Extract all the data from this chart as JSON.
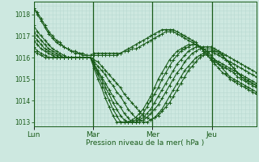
{
  "title": "",
  "xlabel": "Pression niveau de la mer( hPa )",
  "ylabel": "",
  "bg_color": "#cde8e0",
  "plot_bg_color": "#cde8e0",
  "grid_color": "#b8d8d0",
  "line_color": "#1a5c1a",
  "marker": "+",
  "marker_size": 3,
  "linewidth": 0.8,
  "ylim": [
    1012.8,
    1018.6
  ],
  "yticks": [
    1013,
    1014,
    1015,
    1016,
    1017,
    1018
  ],
  "day_labels": [
    "Lun",
    "Mar",
    "Mer",
    "Jeu"
  ],
  "day_positions": [
    0,
    24,
    48,
    72
  ],
  "total_hours": 90,
  "vline_color": "#1a5c1a",
  "vline_positions": [
    0,
    24,
    48,
    72
  ],
  "series": [
    [
      1018.3,
      1018.1,
      1017.8,
      1017.5,
      1017.2,
      1017.0,
      1016.8,
      1016.7,
      1016.5,
      1016.4,
      1016.3,
      1016.3,
      1016.2,
      1016.2,
      1016.1,
      1016.1,
      1016.2,
      1016.2,
      1016.2,
      1016.2,
      1016.2,
      1016.2,
      1016.2,
      1016.2,
      1016.3,
      1016.3,
      1016.4,
      1016.4,
      1016.5,
      1016.6,
      1016.7,
      1016.8,
      1016.9,
      1017.0,
      1017.1,
      1017.2,
      1017.2,
      1017.2,
      1017.1,
      1017.0,
      1016.9,
      1016.8,
      1016.7,
      1016.6,
      1016.5,
      1016.4,
      1016.2,
      1016.0,
      1015.9,
      1015.8,
      1015.7,
      1015.6,
      1015.5,
      1015.4,
      1015.3,
      1015.2,
      1015.1,
      1015.0,
      1014.9,
      1014.8
    ],
    [
      1018.3,
      1018.0,
      1017.7,
      1017.4,
      1017.1,
      1016.9,
      1016.7,
      1016.6,
      1016.5,
      1016.4,
      1016.3,
      1016.2,
      1016.2,
      1016.1,
      1016.1,
      1016.1,
      1016.1,
      1016.1,
      1016.1,
      1016.1,
      1016.1,
      1016.1,
      1016.1,
      1016.2,
      1016.3,
      1016.4,
      1016.5,
      1016.6,
      1016.7,
      1016.8,
      1016.9,
      1017.0,
      1017.1,
      1017.2,
      1017.3,
      1017.3,
      1017.3,
      1017.3,
      1017.2,
      1017.1,
      1017.0,
      1016.9,
      1016.8,
      1016.7,
      1016.5,
      1016.3,
      1016.1,
      1015.9,
      1015.8,
      1015.7,
      1015.6,
      1015.5,
      1015.4,
      1015.3,
      1015.1,
      1015.0,
      1014.9,
      1014.8,
      1014.7,
      1014.6
    ],
    [
      1017.5,
      1017.2,
      1017.0,
      1016.8,
      1016.6,
      1016.4,
      1016.3,
      1016.2,
      1016.1,
      1016.0,
      1016.0,
      1016.0,
      1016.0,
      1016.0,
      1016.0,
      1016.0,
      1015.9,
      1015.8,
      1015.6,
      1015.4,
      1015.2,
      1015.0,
      1014.8,
      1014.6,
      1014.3,
      1014.1,
      1013.9,
      1013.7,
      1013.5,
      1013.3,
      1013.2,
      1013.1,
      1013.2,
      1013.3,
      1013.5,
      1013.7,
      1013.9,
      1014.2,
      1014.5,
      1014.8,
      1015.1,
      1015.4,
      1015.6,
      1015.8,
      1016.0,
      1016.1,
      1016.2,
      1016.3,
      1016.3,
      1016.3,
      1016.2,
      1016.1,
      1016.0,
      1015.9,
      1015.8,
      1015.7,
      1015.6,
      1015.5,
      1015.4,
      1015.3
    ],
    [
      1017.2,
      1017.0,
      1016.8,
      1016.6,
      1016.4,
      1016.3,
      1016.2,
      1016.1,
      1016.0,
      1016.0,
      1016.0,
      1016.0,
      1016.0,
      1016.0,
      1016.0,
      1016.0,
      1015.8,
      1015.6,
      1015.4,
      1015.2,
      1014.9,
      1014.7,
      1014.4,
      1014.2,
      1013.9,
      1013.6,
      1013.4,
      1013.2,
      1013.1,
      1013.0,
      1013.0,
      1013.1,
      1013.2,
      1013.4,
      1013.6,
      1013.9,
      1014.2,
      1014.5,
      1014.8,
      1015.1,
      1015.4,
      1015.6,
      1015.8,
      1016.0,
      1016.1,
      1016.2,
      1016.3,
      1016.3,
      1016.2,
      1016.1,
      1016.0,
      1015.9,
      1015.8,
      1015.7,
      1015.6,
      1015.5,
      1015.4,
      1015.3,
      1015.2,
      1015.1
    ],
    [
      1017.0,
      1016.8,
      1016.6,
      1016.4,
      1016.3,
      1016.2,
      1016.1,
      1016.0,
      1016.0,
      1016.0,
      1016.0,
      1016.0,
      1016.0,
      1016.0,
      1016.0,
      1016.0,
      1015.7,
      1015.4,
      1015.1,
      1014.8,
      1014.5,
      1014.2,
      1013.9,
      1013.7,
      1013.4,
      1013.2,
      1013.0,
      1013.0,
      1013.0,
      1013.1,
      1013.2,
      1013.4,
      1013.6,
      1013.8,
      1014.1,
      1014.4,
      1014.7,
      1015.0,
      1015.3,
      1015.5,
      1015.8,
      1016.0,
      1016.2,
      1016.3,
      1016.4,
      1016.4,
      1016.4,
      1016.4,
      1016.3,
      1016.2,
      1016.1,
      1015.9,
      1015.7,
      1015.5,
      1015.3,
      1015.1,
      1015.0,
      1014.9,
      1014.8,
      1014.7
    ],
    [
      1016.8,
      1016.6,
      1016.4,
      1016.3,
      1016.2,
      1016.1,
      1016.0,
      1016.0,
      1016.0,
      1016.0,
      1016.0,
      1016.0,
      1016.0,
      1016.0,
      1016.0,
      1016.0,
      1015.7,
      1015.3,
      1015.0,
      1014.6,
      1014.3,
      1013.9,
      1013.6,
      1013.3,
      1013.1,
      1013.0,
      1013.0,
      1013.0,
      1013.1,
      1013.2,
      1013.4,
      1013.6,
      1013.9,
      1014.2,
      1014.5,
      1014.8,
      1015.1,
      1015.4,
      1015.7,
      1015.9,
      1016.1,
      1016.3,
      1016.4,
      1016.5,
      1016.5,
      1016.5,
      1016.5,
      1016.5,
      1016.4,
      1016.3,
      1016.1,
      1015.9,
      1015.7,
      1015.5,
      1015.3,
      1015.1,
      1015.0,
      1014.9,
      1014.8,
      1014.7
    ],
    [
      1016.5,
      1016.3,
      1016.2,
      1016.1,
      1016.0,
      1016.0,
      1016.0,
      1016.0,
      1016.0,
      1016.0,
      1016.0,
      1016.0,
      1016.0,
      1016.0,
      1016.0,
      1016.0,
      1015.6,
      1015.2,
      1014.8,
      1014.4,
      1014.0,
      1013.6,
      1013.3,
      1013.0,
      1013.0,
      1013.0,
      1013.0,
      1013.1,
      1013.2,
      1013.4,
      1013.7,
      1014.0,
      1014.3,
      1014.6,
      1015.0,
      1015.3,
      1015.6,
      1015.9,
      1016.1,
      1016.3,
      1016.4,
      1016.5,
      1016.6,
      1016.6,
      1016.5,
      1016.4,
      1016.3,
      1016.1,
      1015.9,
      1015.7,
      1015.5,
      1015.3,
      1015.1,
      1015.0,
      1014.9,
      1014.8,
      1014.7,
      1014.6,
      1014.5,
      1014.4
    ],
    [
      1016.3,
      1016.2,
      1016.1,
      1016.0,
      1016.0,
      1016.0,
      1016.0,
      1016.0,
      1016.0,
      1016.0,
      1016.0,
      1016.0,
      1016.0,
      1016.0,
      1016.0,
      1016.0,
      1015.5,
      1015.0,
      1014.6,
      1014.1,
      1013.7,
      1013.3,
      1013.0,
      1013.0,
      1013.0,
      1013.0,
      1013.1,
      1013.2,
      1013.4,
      1013.6,
      1013.9,
      1014.2,
      1014.6,
      1015.0,
      1015.3,
      1015.6,
      1015.9,
      1016.1,
      1016.3,
      1016.4,
      1016.5,
      1016.6,
      1016.6,
      1016.6,
      1016.5,
      1016.3,
      1016.1,
      1015.9,
      1015.7,
      1015.5,
      1015.3,
      1015.2,
      1015.0,
      1014.9,
      1014.8,
      1014.7,
      1014.6,
      1014.5,
      1014.4,
      1014.3
    ]
  ]
}
